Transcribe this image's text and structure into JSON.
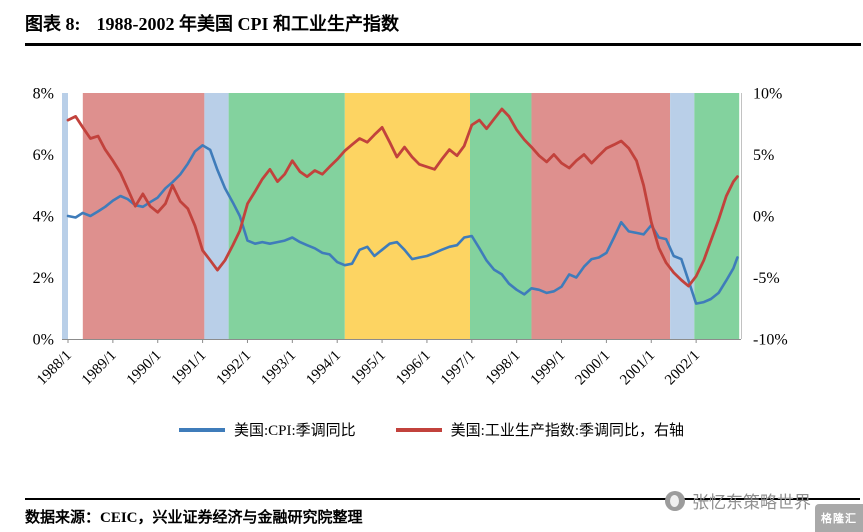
{
  "title": {
    "label": "图表 8:",
    "text": "1988-2002 年美国 CPI 和工业生产指数"
  },
  "source_note": "数据来源：CEIC，兴业证券经济与金融研究院整理",
  "watermark": {
    "text": "张忆东策略世界",
    "logo_text": "格隆汇"
  },
  "chart_data": {
    "type": "line",
    "title": "1988-2002 年美国 CPI 和工业生产指数",
    "xlabel": "",
    "grid": false,
    "legend_position": "bottom",
    "x_range": [
      1988,
      2003
    ],
    "x_tick_labels": [
      "1988/1",
      "1989/1",
      "1990/1",
      "1991/1",
      "1992/1",
      "1993/1",
      "1994/1",
      "1995/1",
      "1996/1",
      "1997/1",
      "1998/1",
      "1999/1",
      "2000/1",
      "2001/1",
      "2002/1"
    ],
    "left_axis": {
      "range": [
        0,
        8
      ],
      "ticks": [
        0,
        2,
        4,
        6,
        8
      ],
      "unit": "%",
      "series": "美国:CPI:季调同比"
    },
    "right_axis": {
      "range": [
        -10,
        10
      ],
      "ticks": [
        -10,
        -5,
        0,
        5,
        10
      ],
      "unit": "%",
      "series": "美国:工业生产指数:季调同比"
    },
    "spine_color": "#b9cfe8",
    "background_bands": [
      {
        "from": 1988.33,
        "to": 1991.04,
        "color": "#de908e"
      },
      {
        "from": 1991.04,
        "to": 1991.58,
        "color": "#b9cfe8"
      },
      {
        "from": 1991.58,
        "to": 1994.17,
        "color": "#83d29e"
      },
      {
        "from": 1994.17,
        "to": 1996.96,
        "color": "#fdd462"
      },
      {
        "from": 1996.96,
        "to": 1998.33,
        "color": "#83d29e"
      },
      {
        "from": 1998.33,
        "to": 2001.42,
        "color": "#de908e"
      },
      {
        "from": 2001.42,
        "to": 2001.96,
        "color": "#b9cfe8"
      },
      {
        "from": 2001.96,
        "to": 2002.96,
        "color": "#83d29e"
      }
    ],
    "x": [
      1988.0,
      1988.17,
      1988.33,
      1988.5,
      1988.67,
      1988.83,
      1989.0,
      1989.17,
      1989.33,
      1989.5,
      1989.67,
      1989.83,
      1990.0,
      1990.17,
      1990.33,
      1990.5,
      1990.67,
      1990.83,
      1991.0,
      1991.17,
      1991.33,
      1991.5,
      1991.67,
      1991.83,
      1992.0,
      1992.17,
      1992.33,
      1992.5,
      1992.67,
      1992.83,
      1993.0,
      1993.17,
      1993.33,
      1993.5,
      1993.67,
      1993.83,
      1994.0,
      1994.17,
      1994.33,
      1994.5,
      1994.67,
      1994.83,
      1995.0,
      1995.17,
      1995.33,
      1995.5,
      1995.67,
      1995.83,
      1996.0,
      1996.17,
      1996.33,
      1996.5,
      1996.67,
      1996.83,
      1997.0,
      1997.17,
      1997.33,
      1997.5,
      1997.67,
      1997.83,
      1998.0,
      1998.17,
      1998.33,
      1998.5,
      1998.67,
      1998.83,
      1999.0,
      1999.17,
      1999.33,
      1999.5,
      1999.67,
      1999.83,
      2000.0,
      2000.17,
      2000.33,
      2000.5,
      2000.67,
      2000.83,
      2001.0,
      2001.17,
      2001.33,
      2001.5,
      2001.67,
      2001.83,
      2002.0,
      2002.17,
      2002.33,
      2002.5,
      2002.67,
      2002.83,
      2002.92
    ],
    "series": [
      {
        "name": "美国:CPI:季调同比",
        "axis": "left",
        "color": "#3f7cba",
        "width": 2.6,
        "y": [
          4.0,
          3.95,
          4.1,
          4.0,
          4.15,
          4.3,
          4.5,
          4.65,
          4.55,
          4.35,
          4.3,
          4.45,
          4.6,
          4.9,
          5.1,
          5.35,
          5.7,
          6.1,
          6.3,
          6.15,
          5.5,
          4.9,
          4.45,
          4.0,
          3.2,
          3.1,
          3.15,
          3.1,
          3.15,
          3.2,
          3.3,
          3.15,
          3.05,
          2.95,
          2.8,
          2.75,
          2.5,
          2.4,
          2.45,
          2.9,
          3.0,
          2.7,
          2.9,
          3.1,
          3.15,
          2.9,
          2.6,
          2.65,
          2.7,
          2.8,
          2.9,
          3.0,
          3.05,
          3.3,
          3.35,
          2.95,
          2.55,
          2.25,
          2.1,
          1.8,
          1.6,
          1.45,
          1.65,
          1.6,
          1.5,
          1.55,
          1.7,
          2.1,
          2.0,
          2.35,
          2.6,
          2.65,
          2.8,
          3.3,
          3.8,
          3.5,
          3.45,
          3.4,
          3.7,
          3.3,
          3.25,
          2.7,
          2.6,
          1.9,
          1.15,
          1.2,
          1.3,
          1.5,
          1.9,
          2.3,
          2.65
        ]
      },
      {
        "name": "美国:工业生产指数:季调同比，右轴",
        "axis": "right",
        "color": "#c2423c",
        "width": 2.8,
        "y": [
          7.8,
          8.1,
          7.2,
          6.3,
          6.5,
          5.4,
          4.5,
          3.5,
          2.2,
          0.8,
          1.8,
          0.8,
          0.3,
          1.0,
          2.5,
          1.2,
          0.6,
          -0.8,
          -2.8,
          -3.6,
          -4.4,
          -3.6,
          -2.4,
          -1.2,
          1.0,
          2.0,
          3.0,
          3.8,
          2.8,
          3.4,
          4.5,
          3.6,
          3.2,
          3.7,
          3.4,
          4.0,
          4.6,
          5.3,
          5.8,
          6.3,
          6.0,
          6.6,
          7.2,
          6.0,
          4.8,
          5.6,
          4.8,
          4.2,
          4.0,
          3.8,
          4.6,
          5.4,
          4.9,
          5.7,
          7.4,
          7.8,
          7.1,
          7.9,
          8.7,
          8.1,
          7.0,
          6.2,
          5.6,
          4.9,
          4.4,
          5.0,
          4.3,
          3.9,
          4.5,
          5.0,
          4.3,
          4.9,
          5.5,
          5.8,
          6.1,
          5.5,
          4.5,
          2.5,
          -0.5,
          -2.6,
          -3.8,
          -4.6,
          -5.2,
          -5.7,
          -4.9,
          -3.6,
          -2.0,
          -0.3,
          1.6,
          2.8,
          3.2
        ]
      }
    ]
  }
}
